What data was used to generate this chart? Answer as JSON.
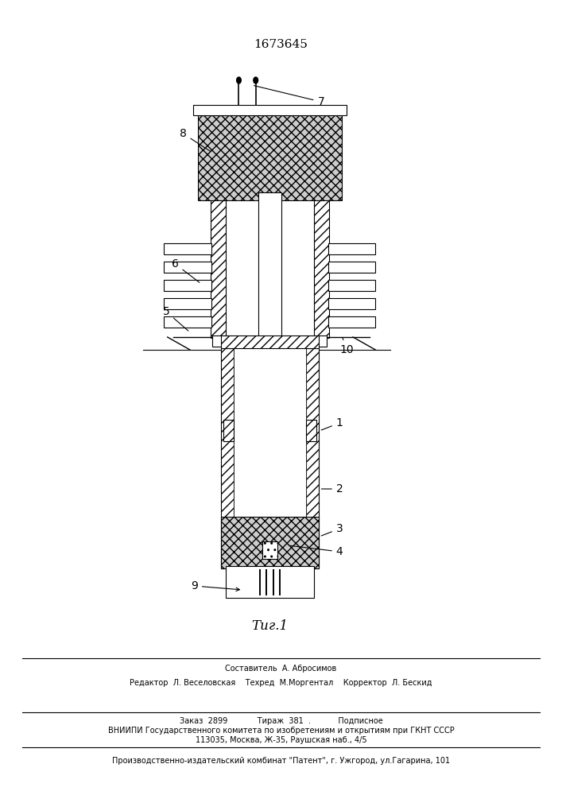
{
  "patent_number": "1673645",
  "fig_label": "Τиг.1",
  "background_color": "#ffffff",
  "line_color": "#000000",
  "footer_line1": "Составитель  А. Абросимов",
  "footer_line2": "Редактор  Л. Веселовская    Техред  М.Моргентал    Корректор  Л. Бескид",
  "footer_line3": "Заказ  2899            Тираж  381  .           Подписное",
  "footer_line4": "ВНИИПИ Государственного комитета по изобретениям и открытиям при ГКНТ СССР",
  "footer_line5": "113035, Москва, Ж-35, Раушская наб., 4/5",
  "footer_line6": "Производственно-издательский комбинат \"Патент\", г. Ужгород, ул.Гагарина, 101"
}
